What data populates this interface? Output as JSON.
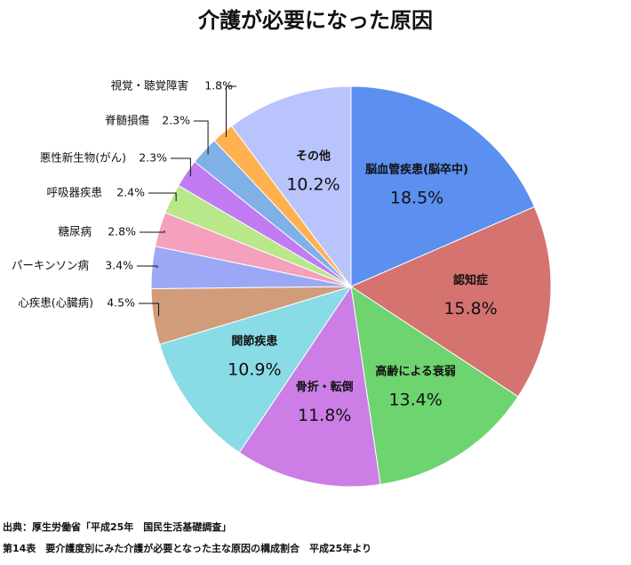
{
  "chart_data": {
    "type": "pie",
    "title": "介護が必要になった原因",
    "categories": [
      "脳血管疾患(脳卒中)",
      "認知症",
      "高齢による衰弱",
      "骨折・転倒",
      "関節疾患",
      "心疾患(心臓病)",
      "パーキンソン病",
      "糖尿病",
      "呼吸器疾患",
      "悪性新生物(がん)",
      "脊髄損傷",
      "視覚・聴覚障害",
      "その他"
    ],
    "values": [
      18.5,
      15.8,
      13.4,
      11.8,
      10.9,
      4.5,
      3.4,
      2.8,
      2.4,
      2.3,
      2.3,
      1.8,
      10.2
    ],
    "value_labels": [
      "18.5%",
      "15.8%",
      "13.4%",
      "11.8%",
      "10.9%",
      "4.5%",
      "3.4%",
      "2.8%",
      "2.4%",
      "2.3%",
      "2.3%",
      "1.8%",
      "10.2%"
    ],
    "colors": [
      "#5b8ff0",
      "#d4736f",
      "#6dd46f",
      "#cc7de6",
      "#89dbe6",
      "#d19c7a",
      "#9aa8f5",
      "#f5a0bd",
      "#b8e88a",
      "#c07cf0",
      "#7fb0e6",
      "#ffb04f",
      "#b8c4fb"
    ],
    "source": [
      "出典：厚生労働省「平成25年　国民生活基礎調査」",
      "第14表　要介護度別にみた介護が必要となった主な原因の構成割合　平成25年より"
    ]
  }
}
